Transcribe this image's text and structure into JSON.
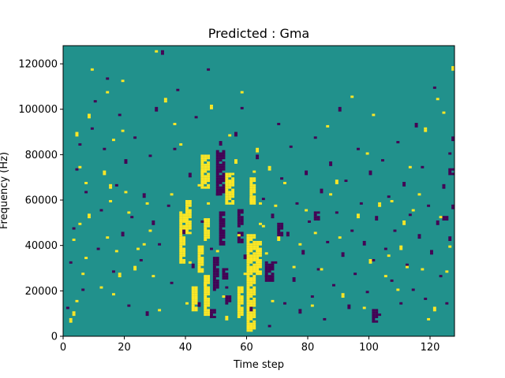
{
  "chart_data": {
    "type": "heatmap",
    "title": "Predicted : Gma",
    "xlabel": "Time step",
    "ylabel": "Frequency (Hz)",
    "xlim": [
      0,
      128
    ],
    "ylim": [
      0,
      128000
    ],
    "xticks": [
      "0",
      "20",
      "40",
      "60",
      "80",
      "100",
      "120"
    ],
    "yticks": [
      "0",
      "20000",
      "40000",
      "60000",
      "80000",
      "100000",
      "120000"
    ],
    "n_time_steps": 128,
    "n_freq_bins": 128,
    "colormap": "viridis",
    "colors": {
      "background": "#21918c",
      "low": "#440154",
      "high": "#fde725"
    },
    "legend": "none",
    "grid": false,
    "high_cells": [
      [
        2,
        6
      ],
      [
        3,
        9
      ],
      [
        3,
        42
      ],
      [
        4,
        15
      ],
      [
        5,
        49
      ],
      [
        5,
        74
      ],
      [
        4,
        88
      ],
      [
        6,
        27
      ],
      [
        7,
        34
      ],
      [
        8,
        52
      ],
      [
        7,
        67
      ],
      [
        8,
        96
      ],
      [
        9,
        117
      ],
      [
        12,
        21
      ],
      [
        13,
        71
      ],
      [
        14,
        43
      ],
      [
        14,
        107
      ],
      [
        15,
        59
      ],
      [
        15,
        65
      ],
      [
        16,
        18
      ],
      [
        16,
        86
      ],
      [
        17,
        37
      ],
      [
        18,
        26
      ],
      [
        19,
        90
      ],
      [
        19,
        112
      ],
      [
        20,
        63
      ],
      [
        21,
        54
      ],
      [
        23,
        29
      ],
      [
        24,
        38
      ],
      [
        26,
        40
      ],
      [
        27,
        58
      ],
      [
        28,
        46
      ],
      [
        29,
        26
      ],
      [
        30,
        125
      ],
      [
        31,
        11
      ],
      [
        33,
        103
      ],
      [
        35,
        62
      ],
      [
        36,
        93
      ],
      [
        38,
        84
      ],
      [
        40,
        14
      ],
      [
        41,
        32
      ],
      [
        43,
        18
      ],
      [
        44,
        66
      ],
      [
        45,
        71
      ],
      [
        46,
        22
      ],
      [
        47,
        58
      ],
      [
        48,
        100
      ],
      [
        50,
        37
      ],
      [
        52,
        17
      ],
      [
        53,
        7
      ],
      [
        54,
        88
      ],
      [
        56,
        76
      ],
      [
        57,
        44
      ],
      [
        58,
        107
      ],
      [
        59,
        27
      ],
      [
        60,
        18
      ],
      [
        61,
        59
      ],
      [
        62,
        72
      ],
      [
        63,
        81
      ],
      [
        64,
        49
      ],
      [
        64,
        58
      ],
      [
        65,
        48
      ],
      [
        66,
        36
      ],
      [
        67,
        73
      ],
      [
        68,
        15
      ],
      [
        69,
        57
      ],
      [
        70,
        42
      ],
      [
        72,
        67
      ],
      [
        75,
        30
      ],
      [
        77,
        40
      ],
      [
        79,
        55
      ],
      [
        81,
        13
      ],
      [
        82,
        45
      ],
      [
        84,
        29
      ],
      [
        86,
        92
      ],
      [
        87,
        62
      ],
      [
        89,
        67
      ],
      [
        90,
        43
      ],
      [
        91,
        17
      ],
      [
        94,
        105
      ],
      [
        96,
        52
      ],
      [
        98,
        12
      ],
      [
        99,
        80
      ],
      [
        100,
        32
      ],
      [
        101,
        97
      ],
      [
        103,
        57
      ],
      [
        105,
        26
      ],
      [
        106,
        35
      ],
      [
        107,
        59
      ],
      [
        109,
        20
      ],
      [
        110,
        38
      ],
      [
        111,
        49
      ],
      [
        112,
        30
      ],
      [
        113,
        74
      ],
      [
        114,
        55
      ],
      [
        116,
        62
      ],
      [
        117,
        29
      ],
      [
        118,
        90
      ],
      [
        119,
        7
      ],
      [
        121,
        11
      ],
      [
        122,
        104
      ],
      [
        123,
        52
      ],
      [
        124,
        98
      ],
      [
        125,
        28
      ],
      [
        126,
        39
      ],
      [
        127,
        117
      ]
    ],
    "high_blocks": [
      [
        45,
        48,
        65,
        80
      ],
      [
        46,
        48,
        9,
        27
      ],
      [
        46,
        48,
        42,
        52
      ],
      [
        44,
        46,
        28,
        40
      ],
      [
        38,
        40,
        32,
        55
      ],
      [
        40,
        42,
        45,
        60
      ],
      [
        60,
        63,
        2,
        45
      ],
      [
        61,
        63,
        58,
        70
      ],
      [
        63,
        65,
        27,
        42
      ],
      [
        57,
        59,
        8,
        22
      ],
      [
        53,
        56,
        58,
        72
      ],
      [
        42,
        44,
        11,
        22
      ]
    ],
    "low_cells": [
      [
        1,
        12
      ],
      [
        2,
        32
      ],
      [
        3,
        47
      ],
      [
        4,
        73
      ],
      [
        5,
        84
      ],
      [
        6,
        20
      ],
      [
        7,
        63
      ],
      [
        9,
        91
      ],
      [
        10,
        103
      ],
      [
        11,
        38
      ],
      [
        12,
        55
      ],
      [
        13,
        82
      ],
      [
        14,
        113
      ],
      [
        16,
        28
      ],
      [
        17,
        66
      ],
      [
        18,
        97
      ],
      [
        19,
        44
      ],
      [
        20,
        76
      ],
      [
        21,
        13
      ],
      [
        22,
        52
      ],
      [
        23,
        87
      ],
      [
        25,
        33
      ],
      [
        26,
        61
      ],
      [
        27,
        9
      ],
      [
        28,
        79
      ],
      [
        29,
        49
      ],
      [
        30,
        99
      ],
      [
        31,
        40
      ],
      [
        32,
        124
      ],
      [
        34,
        57
      ],
      [
        35,
        23
      ],
      [
        36,
        82
      ],
      [
        37,
        108
      ],
      [
        39,
        45
      ],
      [
        41,
        70
      ],
      [
        42,
        30
      ],
      [
        43,
        96
      ],
      [
        44,
        13
      ],
      [
        45,
        50
      ],
      [
        47,
        117
      ],
      [
        48,
        38
      ],
      [
        50,
        62
      ],
      [
        51,
        84
      ],
      [
        53,
        21
      ],
      [
        56,
        88
      ],
      [
        58,
        100
      ],
      [
        59,
        34
      ],
      [
        61,
        11
      ],
      [
        63,
        78
      ],
      [
        65,
        60
      ],
      [
        66,
        26
      ],
      [
        67,
        4
      ],
      [
        68,
        52
      ],
      [
        69,
        32
      ],
      [
        70,
        93
      ],
      [
        71,
        69
      ],
      [
        72,
        14
      ],
      [
        73,
        44
      ],
      [
        74,
        83
      ],
      [
        75,
        24
      ],
      [
        76,
        58
      ],
      [
        77,
        10
      ],
      [
        78,
        36
      ],
      [
        79,
        71
      ],
      [
        80,
        50
      ],
      [
        81,
        17
      ],
      [
        82,
        87
      ],
      [
        83,
        29
      ],
      [
        84,
        63
      ],
      [
        85,
        7
      ],
      [
        86,
        41
      ],
      [
        87,
        75
      ],
      [
        88,
        22
      ],
      [
        89,
        54
      ],
      [
        90,
        99
      ],
      [
        91,
        35
      ],
      [
        92,
        68
      ],
      [
        93,
        12
      ],
      [
        94,
        46
      ],
      [
        95,
        27
      ],
      [
        96,
        82
      ],
      [
        97,
        58
      ],
      [
        98,
        40
      ],
      [
        99,
        19
      ],
      [
        100,
        71
      ],
      [
        101,
        33
      ],
      [
        102,
        51
      ],
      [
        103,
        9
      ],
      [
        104,
        77
      ],
      [
        105,
        38
      ],
      [
        106,
        61
      ],
      [
        107,
        24
      ],
      [
        108,
        46
      ],
      [
        109,
        85
      ],
      [
        110,
        14
      ],
      [
        111,
        66
      ],
      [
        112,
        31
      ],
      [
        113,
        53
      ],
      [
        114,
        20
      ],
      [
        115,
        92
      ],
      [
        116,
        43
      ],
      [
        117,
        74
      ],
      [
        118,
        16
      ],
      [
        119,
        57
      ],
      [
        120,
        36
      ],
      [
        121,
        109
      ],
      [
        122,
        49
      ],
      [
        123,
        26
      ],
      [
        124,
        65
      ],
      [
        125,
        14
      ],
      [
        126,
        42
      ],
      [
        127,
        86
      ],
      [
        126,
        80
      ],
      [
        127,
        56
      ]
    ],
    "low_blocks": [
      [
        50,
        53,
        62,
        82
      ],
      [
        49,
        51,
        20,
        35
      ],
      [
        51,
        53,
        40,
        55
      ],
      [
        48,
        50,
        8,
        12
      ],
      [
        52,
        54,
        25,
        30
      ],
      [
        57,
        59,
        48,
        56
      ],
      [
        53,
        55,
        14,
        18
      ],
      [
        66,
        69,
        24,
        33
      ],
      [
        70,
        72,
        44,
        50
      ],
      [
        82,
        84,
        51,
        55
      ],
      [
        101,
        103,
        6,
        12
      ],
      [
        124,
        126,
        51,
        53
      ],
      [
        126,
        128,
        71,
        74
      ],
      [
        57,
        59,
        41,
        46
      ]
    ]
  }
}
